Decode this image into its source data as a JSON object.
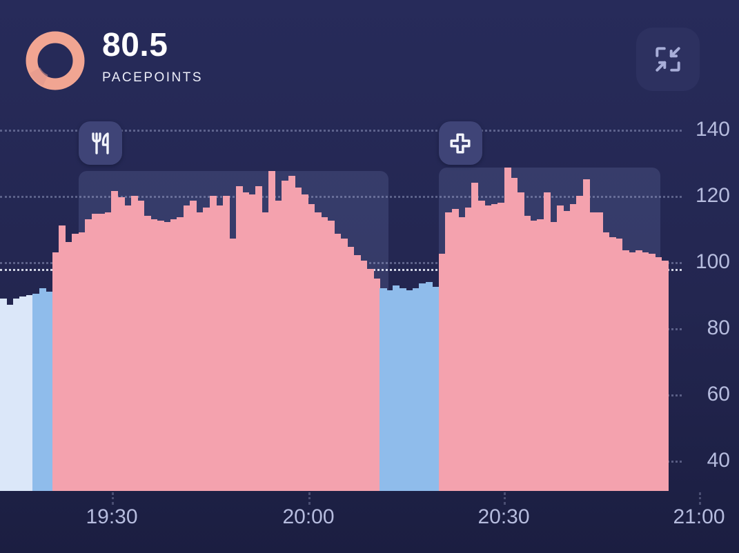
{
  "header": {
    "value": "80.5",
    "label": "PACEPOINTS"
  },
  "chart_data": {
    "type": "bar",
    "unit": "pacepoints",
    "bar_interval_minutes": 1,
    "x_ticks": [
      "19:30",
      "20:00",
      "20:30",
      "21:00"
    ],
    "y_ticks": [
      140,
      120,
      100,
      80,
      60,
      40
    ],
    "ylim": [
      31,
      146
    ],
    "grid": "dotted horizontal",
    "legend": "none",
    "threshold_value": 98,
    "segments": [
      {
        "color_key": "pale_blue",
        "values": [
          89,
          87,
          89,
          89.5,
          90
        ]
      },
      {
        "color_key": "blue",
        "values": [
          90.5,
          92,
          91
        ]
      },
      {
        "color_key": "pink",
        "values": [
          103,
          111,
          106,
          108.5,
          109,
          113,
          114.5,
          114.5,
          115,
          121.5,
          119.5,
          117,
          120,
          118.5,
          114,
          113,
          112.5,
          112,
          113,
          113.5,
          117,
          118.5,
          115,
          116.5,
          120,
          117,
          120,
          107,
          123,
          121,
          120.5,
          123,
          115,
          127.5,
          118.5,
          124.5,
          126,
          122.5,
          120.5,
          117.5,
          115,
          113.5,
          112.5,
          108.5,
          107,
          104.5,
          102,
          100.5,
          98,
          95
        ]
      },
      {
        "color_key": "blue",
        "values": [
          92,
          91.5,
          93,
          92,
          91.5,
          92,
          93.5,
          94,
          92.5
        ]
      },
      {
        "color_key": "pink",
        "values": [
          102.5,
          115,
          116,
          113.5,
          116.5,
          124,
          118.5,
          117,
          117.5,
          118,
          128.5,
          125.5,
          121,
          114,
          112.5,
          113,
          121,
          112,
          117,
          115.5,
          117.5,
          120,
          125,
          115,
          115,
          109,
          107.5,
          107,
          103.5,
          103,
          103.5,
          103,
          102.5,
          101.5,
          100.5
        ]
      }
    ],
    "events": [
      {
        "name": "meal",
        "icon": "fork-knife-icon",
        "start_bar": 12,
        "end_bar": 59.3,
        "top_value": 127.5
      },
      {
        "name": "health",
        "icon": "plus-icon",
        "start_bar": 67,
        "end_bar": 100.8,
        "top_value": 128.5
      }
    ]
  },
  "colors": {
    "background_top": "#272b5a",
    "background_bottom": "#1b1e41",
    "pink": "#f4a2ae",
    "blue": "#8fbceb",
    "pale_blue": "#dbe7f9",
    "highlight": "rgba(148,159,218,0.17)",
    "grid": "rgba(178,184,222,0.40)",
    "threshold": "rgba(240,243,255,0.85)",
    "axis_label": "#b6bcde",
    "ring": "#f1a592",
    "ring_shade": "#e0988c",
    "badge_bg": "#3f4477",
    "badge_icon": "#f2f4fb",
    "button_bg": "#2d3160",
    "button_icon": "#a8aed8",
    "value_text": "#ffffff"
  }
}
